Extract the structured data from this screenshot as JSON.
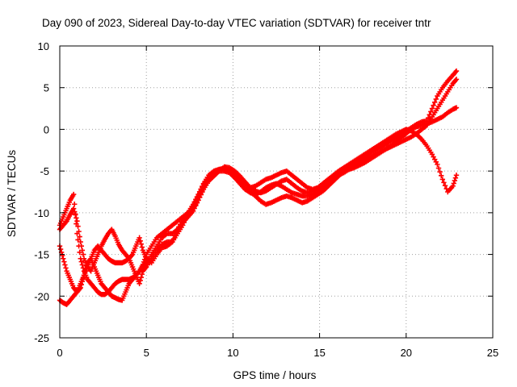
{
  "chart_data": {
    "type": "scatter",
    "title": "Day 090 of 2023, Sidereal Day-to-day VTEC variation (SDTVAR) for receiver tntr",
    "xlabel": "GPS time / hours",
    "ylabel": "SDTVAR / TECUs",
    "xlim": [
      0,
      25
    ],
    "ylim": [
      -25,
      10
    ],
    "x_ticks": [
      0,
      5,
      10,
      15,
      20,
      25
    ],
    "y_ticks": [
      -25,
      -20,
      -15,
      -10,
      -5,
      0,
      5,
      10
    ],
    "x_tick_labels": [
      "0",
      "5",
      "10",
      "15",
      "20",
      "25"
    ],
    "y_tick_labels": [
      "-25",
      "-20",
      "-15",
      "-10",
      "-5",
      "0",
      "5",
      "10"
    ],
    "grid": true,
    "grid_style": "dotted",
    "legend": "none",
    "marker": "plus",
    "color": "#ff0000",
    "series": [
      {
        "x": [
          0.0,
          0.2,
          0.4,
          0.6,
          0.8,
          1.0,
          1.2,
          1.4,
          1.6,
          1.8,
          2.0,
          2.2,
          2.4,
          2.6,
          2.8,
          3.0,
          3.2,
          3.4,
          3.6,
          3.8,
          4.0,
          4.2,
          4.4,
          4.6,
          4.8,
          5.0,
          5.3,
          5.6,
          5.9,
          6.2,
          6.5,
          6.8,
          7.1,
          7.4,
          7.7,
          8.0,
          8.3,
          8.6,
          8.9,
          9.2,
          9.5,
          9.8,
          10.1,
          10.4,
          10.7,
          11.0,
          11.3,
          11.6,
          11.9,
          12.2,
          12.5,
          12.8,
          13.1,
          13.4,
          13.7,
          14.0,
          14.3,
          14.6,
          14.9,
          15.2,
          15.5,
          15.8,
          16.1,
          16.4,
          16.7,
          17.0,
          17.3,
          17.6,
          17.9,
          18.2,
          18.5,
          18.8,
          19.1,
          19.4,
          19.7,
          20.0,
          20.3,
          20.6,
          20.9,
          21.2,
          21.5,
          21.8,
          22.1,
          22.4,
          22.7,
          22.9
        ],
        "y": [
          -12.0,
          -11.5,
          -11.0,
          -10.2,
          -9.5,
          -11.0,
          -13.5,
          -15.5,
          -16.5,
          -17.0,
          -16.0,
          -15.0,
          -14.0,
          -13.2,
          -12.5,
          -12.0,
          -12.8,
          -13.8,
          -14.5,
          -15.0,
          -15.5,
          -15.0,
          -14.0,
          -13.0,
          -14.5,
          -15.5,
          -16.0,
          -15.0,
          -14.2,
          -14.0,
          -13.5,
          -12.0,
          -10.8,
          -10.0,
          -9.0,
          -7.8,
          -6.5,
          -5.5,
          -5.0,
          -4.8,
          -4.7,
          -4.8,
          -5.3,
          -6.0,
          -6.5,
          -7.0,
          -6.8,
          -6.4,
          -6.0,
          -5.8,
          -5.5,
          -5.2,
          -5.0,
          -5.5,
          -6.0,
          -6.5,
          -7.0,
          -7.2,
          -7.0,
          -6.5,
          -6.0,
          -5.6,
          -5.2,
          -4.8,
          -4.5,
          -4.0,
          -3.6,
          -3.2,
          -2.8,
          -2.5,
          -2.2,
          -1.8,
          -1.4,
          -1.0,
          -0.6,
          -0.2,
          0.2,
          0.6,
          0.9,
          1.0,
          2.5,
          4.0,
          5.0,
          5.8,
          6.5,
          7.0
        ]
      },
      {
        "x": [
          0.0,
          0.2,
          0.4,
          0.6,
          0.8,
          1.0,
          1.2,
          1.4,
          1.6,
          1.8,
          2.0,
          2.2,
          2.4,
          2.6,
          2.8,
          3.0,
          3.2,
          3.4,
          3.6,
          3.8,
          4.0,
          4.2,
          4.4,
          4.6,
          4.8,
          5.0,
          5.3,
          5.6,
          5.9,
          6.2,
          6.5,
          6.8,
          7.1,
          7.4,
          7.7,
          8.0,
          8.3,
          8.6,
          8.9,
          9.2,
          9.5,
          9.8,
          10.1,
          10.4,
          10.7,
          11.0,
          11.3,
          11.6,
          11.9,
          12.2,
          12.5,
          12.8,
          13.1,
          13.4,
          13.7,
          14.0,
          14.3,
          14.6,
          14.9,
          15.2,
          15.5,
          15.8,
          16.1,
          16.4,
          16.7,
          17.0,
          17.3,
          17.6,
          17.9,
          18.2,
          18.5,
          18.8,
          19.1,
          19.4,
          19.7,
          20.0,
          20.3,
          20.6,
          20.9,
          21.2,
          21.5,
          21.8,
          22.1,
          22.4,
          22.7,
          22.9
        ],
        "y": [
          -14.0,
          -15.5,
          -17.0,
          -18.0,
          -19.0,
          -19.5,
          -19.0,
          -17.5,
          -16.0,
          -15.5,
          -16.5,
          -17.5,
          -18.5,
          -19.0,
          -19.5,
          -20.0,
          -20.2,
          -20.4,
          -20.5,
          -19.5,
          -18.5,
          -18.0,
          -17.5,
          -17.0,
          -16.5,
          -16.0,
          -15.0,
          -14.0,
          -13.0,
          -12.5,
          -12.5,
          -12.0,
          -11.2,
          -10.5,
          -9.8,
          -8.5,
          -7.0,
          -6.0,
          -5.3,
          -5.0,
          -5.0,
          -5.2,
          -5.8,
          -6.5,
          -7.2,
          -7.6,
          -7.8,
          -7.5,
          -7.0,
          -6.7,
          -6.5,
          -6.8,
          -7.2,
          -7.6,
          -7.8,
          -8.0,
          -8.0,
          -7.8,
          -7.5,
          -7.0,
          -6.5,
          -6.0,
          -5.5,
          -5.2,
          -4.8,
          -4.4,
          -4.0,
          -3.6,
          -3.3,
          -3.0,
          -2.7,
          -2.4,
          -2.1,
          -1.8,
          -1.5,
          -1.2,
          -0.9,
          -0.5,
          0.0,
          0.5,
          1.5,
          2.5,
          3.5,
          4.5,
          5.5,
          6.0
        ]
      },
      {
        "x": [
          0.0,
          0.2,
          0.4,
          0.6,
          0.8,
          1.0,
          1.2,
          1.4,
          1.6,
          1.8,
          2.0,
          2.2,
          2.4,
          2.6,
          2.8,
          3.0,
          3.2,
          3.4,
          3.6,
          3.8,
          4.0,
          4.2,
          4.4,
          4.6,
          4.8,
          5.0,
          5.3,
          5.6,
          5.9,
          6.2,
          6.5,
          6.8,
          7.1,
          7.4,
          7.7,
          8.0,
          8.3,
          8.6,
          8.9,
          9.2,
          9.5,
          9.8,
          10.1,
          10.4,
          10.7,
          11.0,
          11.3,
          11.6,
          11.9,
          12.2,
          12.5,
          12.8,
          13.1,
          13.4,
          13.7,
          14.0,
          14.3,
          14.6,
          14.9,
          15.2,
          15.5,
          15.8,
          16.1,
          16.4,
          16.7,
          17.0,
          17.3,
          17.6,
          17.9,
          18.2,
          18.5,
          18.8,
          19.1,
          19.4,
          19.7,
          20.0,
          20.3,
          20.6,
          20.9,
          21.2,
          21.5,
          21.8,
          22.1,
          22.4,
          22.7,
          22.9
        ],
        "y": [
          -20.5,
          -20.8,
          -21.0,
          -20.5,
          -20.0,
          -19.5,
          -18.5,
          -17.5,
          -16.5,
          -15.5,
          -14.5,
          -14.0,
          -14.5,
          -15.0,
          -15.5,
          -15.8,
          -16.0,
          -16.0,
          -16.0,
          -15.8,
          -15.5,
          -16.5,
          -17.5,
          -18.5,
          -17.0,
          -16.5,
          -15.5,
          -14.5,
          -13.8,
          -13.5,
          -13.5,
          -12.5,
          -11.5,
          -10.2,
          -9.2,
          -8.0,
          -6.6,
          -5.8,
          -5.2,
          -4.8,
          -4.7,
          -5.0,
          -5.5,
          -6.2,
          -7.0,
          -7.5,
          -8.0,
          -8.6,
          -9.0,
          -8.8,
          -8.5,
          -8.2,
          -8.0,
          -8.2,
          -8.5,
          -8.8,
          -8.6,
          -8.2,
          -7.8,
          -7.4,
          -6.8,
          -6.2,
          -5.6,
          -5.0,
          -4.8,
          -4.6,
          -4.3,
          -4.0,
          -3.6,
          -3.2,
          -2.8,
          -2.4,
          -2.0,
          -1.5,
          -1.0,
          -0.5,
          0.0,
          0.3,
          0.5,
          0.7,
          0.9,
          1.2,
          1.5,
          2.0,
          2.4,
          2.6
        ]
      },
      {
        "x": [
          0.0,
          0.2,
          0.4,
          0.6,
          0.8,
          1.0,
          1.2,
          1.4,
          1.6,
          1.8,
          2.0,
          2.2,
          2.4,
          2.6,
          2.8,
          3.0,
          3.2,
          3.4,
          3.6,
          3.8,
          4.0,
          4.2,
          4.4,
          4.6,
          4.8,
          5.0,
          5.3,
          5.6,
          5.9,
          6.2,
          6.5,
          6.8,
          7.1,
          7.4,
          7.7,
          8.0,
          8.3,
          8.6,
          8.9,
          9.2,
          9.5,
          9.8,
          10.1,
          10.4,
          10.7,
          11.0,
          11.3,
          11.6,
          11.9,
          12.2,
          12.5,
          12.8,
          13.1,
          13.4,
          13.7,
          14.0,
          14.3,
          14.6,
          14.9,
          15.2,
          15.5,
          15.8,
          16.1,
          16.4,
          16.7,
          17.0,
          17.3,
          17.6,
          17.9,
          18.2,
          18.5,
          18.8,
          19.1,
          19.4,
          19.7,
          20.0,
          20.3,
          20.6,
          20.9,
          21.2,
          21.5,
          21.8,
          22.1,
          22.4,
          22.7,
          22.9
        ],
        "y": [
          -11.5,
          -10.5,
          -9.5,
          -8.5,
          -7.8,
          -12.5,
          -15.5,
          -17.0,
          -18.0,
          -18.5,
          -19.0,
          -19.5,
          -19.8,
          -19.8,
          -19.5,
          -19.0,
          -18.5,
          -18.2,
          -18.0,
          -18.0,
          -18.0,
          -17.8,
          -17.5,
          -17.0,
          -16.2,
          -15.0,
          -14.0,
          -13.0,
          -12.5,
          -12.0,
          -11.5,
          -11.0,
          -10.5,
          -10.0,
          -9.5,
          -8.5,
          -7.2,
          -6.2,
          -5.6,
          -5.0,
          -4.5,
          -4.6,
          -5.0,
          -5.6,
          -6.3,
          -7.0,
          -7.4,
          -7.6,
          -7.4,
          -7.0,
          -6.6,
          -6.2,
          -6.0,
          -6.5,
          -7.0,
          -7.4,
          -7.6,
          -7.4,
          -7.0,
          -6.5,
          -6.0,
          -5.5,
          -5.0,
          -4.6,
          -4.2,
          -3.8,
          -3.4,
          -3.0,
          -2.6,
          -2.2,
          -1.8,
          -1.4,
          -1.0,
          -0.6,
          -0.3,
          0.0,
          -0.2,
          -0.6,
          -1.2,
          -2.0,
          -3.0,
          -4.2,
          -6.0,
          -7.5,
          -6.8,
          -5.5
        ]
      }
    ]
  }
}
